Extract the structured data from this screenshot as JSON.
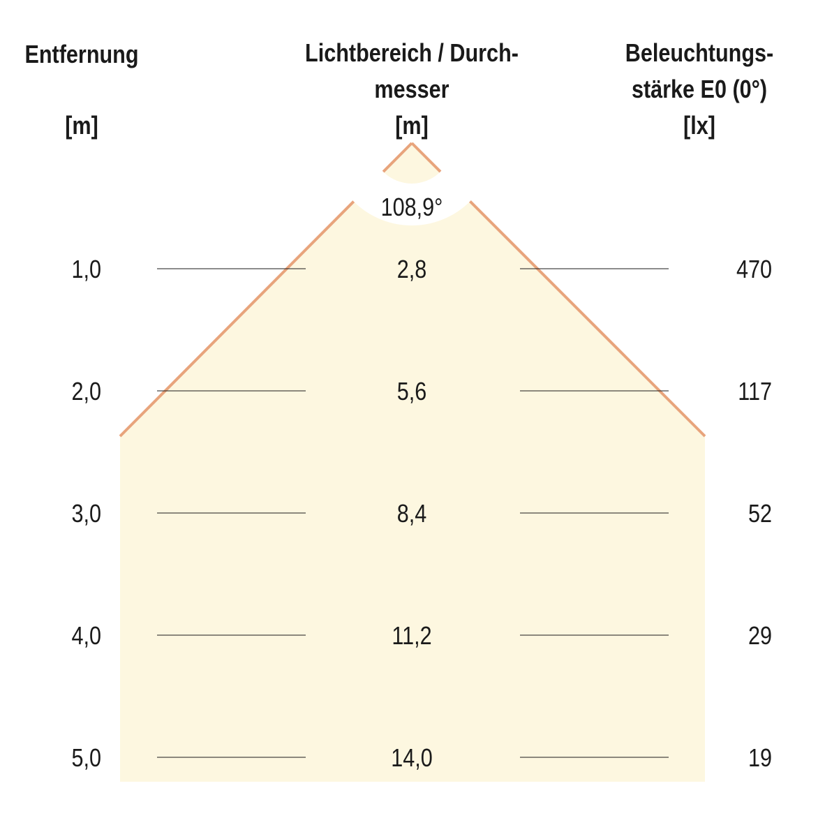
{
  "colors": {
    "beam_fill": "#fdf7e0",
    "beam_edge": "#e8a47c",
    "rule": "#1a1a1a"
  },
  "headers": {
    "distance": {
      "lines": [
        "Entfernung"
      ],
      "unit": "[m]"
    },
    "diameter": {
      "lines": [
        "Lichtbereich / Durch-",
        "messer"
      ],
      "unit": "[m]"
    },
    "illuminance": {
      "lines": [
        "Beleuchtungs-",
        "stärke E0 (0°)"
      ],
      "unit": "[lx]"
    }
  },
  "beam_angle": "108,9°",
  "rows": [
    {
      "distance": "1,0",
      "diameter": "2,8",
      "illuminance": "470"
    },
    {
      "distance": "2,0",
      "diameter": "5,6",
      "illuminance": "117"
    },
    {
      "distance": "3,0",
      "diameter": "8,4",
      "illuminance": "52"
    },
    {
      "distance": "4,0",
      "diameter": "11,2",
      "illuminance": "29"
    },
    {
      "distance": "5,0",
      "diameter": "14,0",
      "illuminance": "19"
    }
  ]
}
